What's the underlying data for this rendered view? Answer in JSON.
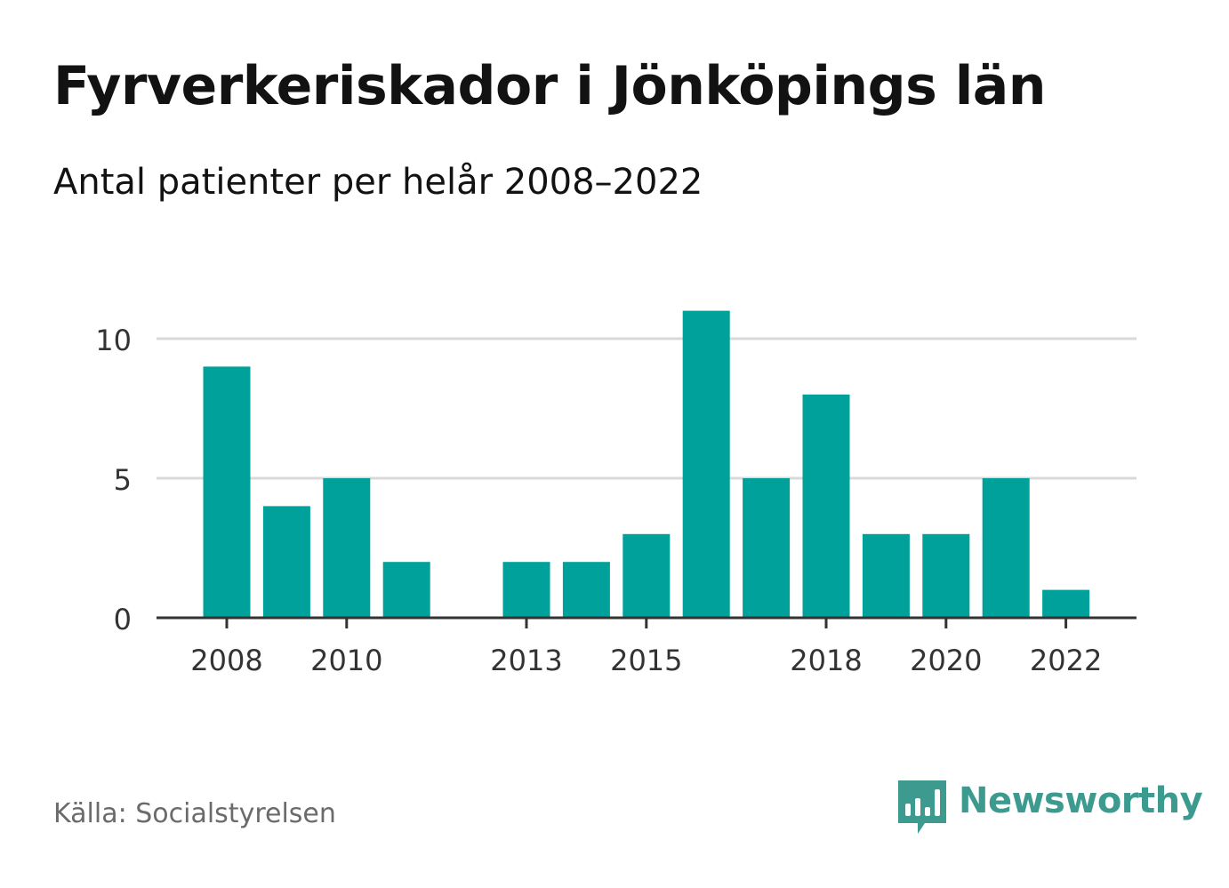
{
  "title": "Fyrverkeriskador i Jönköpings län",
  "subtitle": "Antal patienter per helår 2008–2022",
  "source": "Källa: Socialstyrelsen",
  "brand": {
    "name": "Newsworthy",
    "icon": "bar-chart-speech-bubble-icon",
    "color": "#3d9a8f"
  },
  "colors": {
    "bar": "#00a19a",
    "grid": "#d9d9d9",
    "axis": "#333333",
    "tick_text": "#333333"
  },
  "chart_data": {
    "type": "bar",
    "x": [
      2008,
      2009,
      2010,
      2011,
      2012,
      2013,
      2014,
      2015,
      2016,
      2017,
      2018,
      2019,
      2020,
      2021,
      2022
    ],
    "values": [
      9,
      4,
      5,
      2,
      0,
      2,
      2,
      3,
      11,
      5,
      8,
      3,
      3,
      5,
      1
    ],
    "xticks": [
      "2008",
      "2010",
      "2013",
      "2015",
      "2018",
      "2020",
      "2022"
    ],
    "yticks": [
      "0",
      "5",
      "10"
    ],
    "ylim": [
      0,
      11
    ],
    "grid": true,
    "legend": "none"
  }
}
